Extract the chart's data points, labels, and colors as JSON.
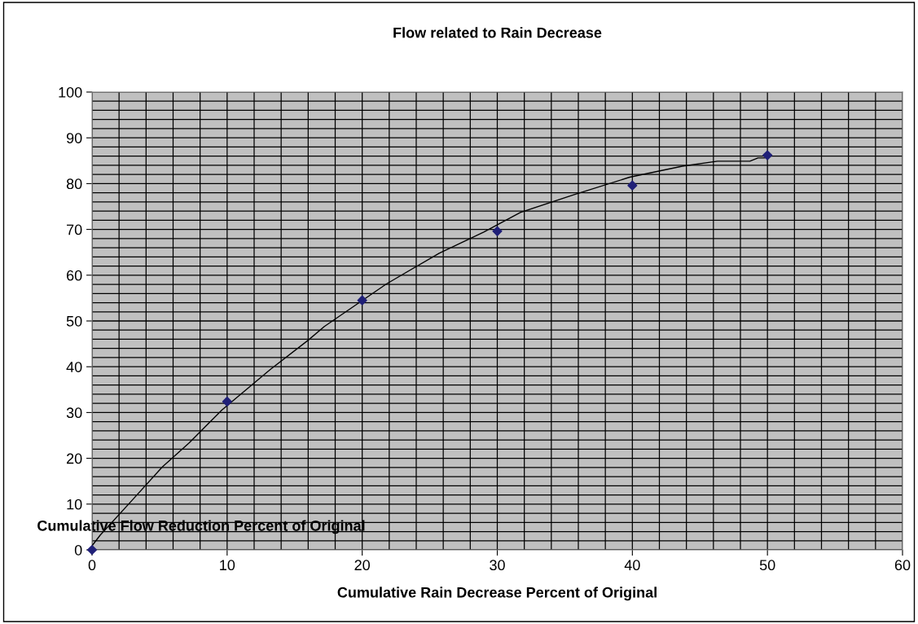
{
  "chart_data": {
    "type": "scatter",
    "title": "Flow related to Rain Decrease",
    "xlabel": "Cumulative Rain Decrease Percent of Original",
    "ylabel": "Cumulative Flow Reduction Percent of Original",
    "xlim": [
      0,
      60
    ],
    "ylim": [
      0,
      100
    ],
    "xticks": [
      0,
      10,
      20,
      30,
      40,
      50,
      60
    ],
    "yticks": [
      0,
      10,
      20,
      30,
      40,
      50,
      60,
      70,
      80,
      90,
      100
    ],
    "grid": true,
    "legend": false,
    "series": [
      {
        "marker": "diamond",
        "color": "#202078",
        "x": [
          0,
          10,
          20,
          30,
          40,
          50
        ],
        "values": [
          0,
          32.4,
          54.5,
          69.6,
          79.6,
          86.2
        ]
      },
      {
        "type": "line",
        "marker": "none",
        "line_style": "solid",
        "color": "#000000",
        "x": [
          0,
          0.6,
          2.8,
          5.2,
          7.2,
          9.6,
          13.2,
          16.0,
          17.2,
          21.8,
          25.7,
          29.0,
          31.7,
          35.7,
          39.8,
          43.7,
          46.3,
          48.7,
          49.3,
          49.8
        ],
        "values": [
          0.9,
          3.2,
          10.3,
          18.1,
          23.4,
          30.5,
          39.4,
          45.8,
          48.8,
          58.1,
          64.8,
          69.4,
          73.7,
          77.6,
          81.4,
          83.8,
          84.9,
          84.9,
          85.6,
          85.6
        ]
      }
    ]
  }
}
